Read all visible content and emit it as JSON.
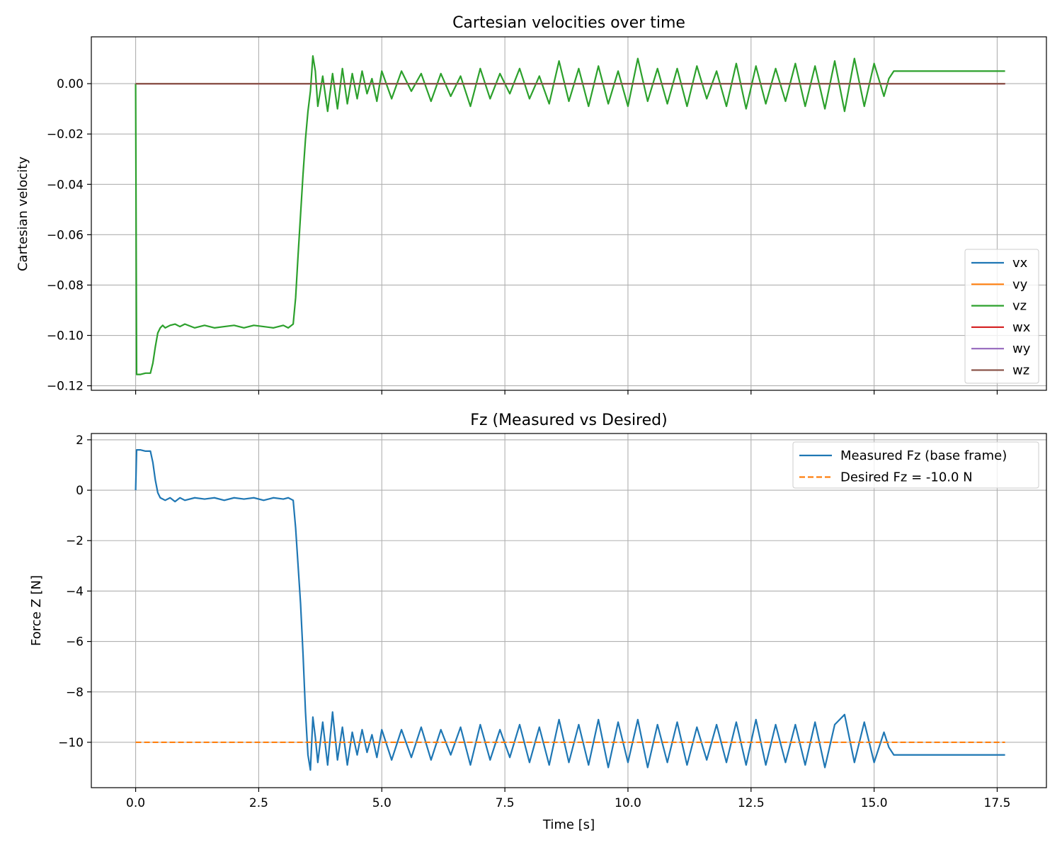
{
  "chart_data": [
    {
      "type": "line",
      "title": "Cartesian velocities over time",
      "xlabel": "",
      "ylabel": "Cartesian velocity",
      "xlim": [
        -0.9,
        18.5
      ],
      "ylim": [
        -0.1218,
        0.0186
      ],
      "xticks": [
        0.0,
        2.5,
        5.0,
        7.5,
        10.0,
        12.5,
        15.0,
        17.5
      ],
      "xtick_labels": [
        "",
        "",
        "",
        "",
        "",
        "",
        "",
        ""
      ],
      "yticks": [
        0.0,
        -0.02,
        -0.04,
        -0.06,
        -0.08,
        -0.1,
        -0.12
      ],
      "ytick_labels": [
        "0.00",
        "−0.02",
        "−0.04",
        "−0.06",
        "−0.08",
        "−0.10",
        "−0.12"
      ],
      "grid": true,
      "legend_position": "lower right",
      "series": [
        {
          "name": "vx",
          "color": "#1f77b4",
          "style": "solid",
          "x": [
            0.0,
            17.66
          ],
          "y": [
            0.0,
            0.0
          ]
        },
        {
          "name": "vy",
          "color": "#ff7f0e",
          "style": "solid",
          "x": [
            0.0,
            17.66
          ],
          "y": [
            0.0,
            0.0
          ]
        },
        {
          "name": "vz",
          "color": "#2ca02c",
          "style": "solid",
          "x": [
            0.0,
            0.02,
            0.1,
            0.2,
            0.3,
            0.35,
            0.4,
            0.45,
            0.5,
            0.55,
            0.6,
            0.7,
            0.8,
            0.9,
            1.0,
            1.2,
            1.4,
            1.6,
            1.8,
            2.0,
            2.2,
            2.4,
            2.6,
            2.8,
            3.0,
            3.1,
            3.2,
            3.25,
            3.3,
            3.35,
            3.4,
            3.45,
            3.5,
            3.55,
            3.6,
            3.65,
            3.7,
            3.8,
            3.9,
            4.0,
            4.1,
            4.2,
            4.3,
            4.4,
            4.5,
            4.6,
            4.7,
            4.8,
            4.9,
            5.0,
            5.2,
            5.4,
            5.6,
            5.8,
            6.0,
            6.2,
            6.4,
            6.6,
            6.8,
            7.0,
            7.2,
            7.4,
            7.6,
            7.8,
            8.0,
            8.2,
            8.4,
            8.6,
            8.8,
            9.0,
            9.2,
            9.4,
            9.6,
            9.8,
            10.0,
            10.2,
            10.4,
            10.6,
            10.8,
            11.0,
            11.2,
            11.4,
            11.6,
            11.8,
            12.0,
            12.2,
            12.4,
            12.6,
            12.8,
            13.0,
            13.2,
            13.4,
            13.6,
            13.8,
            14.0,
            14.2,
            14.4,
            14.6,
            14.8,
            15.0,
            15.2,
            15.3,
            15.4,
            17.66
          ],
          "y": [
            0.0,
            -0.1155,
            -0.1155,
            -0.115,
            -0.115,
            -0.111,
            -0.1045,
            -0.099,
            -0.097,
            -0.096,
            -0.097,
            -0.096,
            -0.0955,
            -0.0965,
            -0.0955,
            -0.097,
            -0.096,
            -0.097,
            -0.0965,
            -0.096,
            -0.097,
            -0.096,
            -0.0965,
            -0.097,
            -0.096,
            -0.097,
            -0.0955,
            -0.085,
            -0.068,
            -0.052,
            -0.036,
            -0.022,
            -0.011,
            -0.003,
            0.011,
            0.005,
            -0.009,
            0.003,
            -0.011,
            0.004,
            -0.01,
            0.006,
            -0.008,
            0.004,
            -0.006,
            0.005,
            -0.004,
            0.002,
            -0.007,
            0.005,
            -0.006,
            0.005,
            -0.003,
            0.004,
            -0.007,
            0.004,
            -0.005,
            0.003,
            -0.009,
            0.006,
            -0.006,
            0.004,
            -0.004,
            0.006,
            -0.006,
            0.003,
            -0.008,
            0.009,
            -0.007,
            0.006,
            -0.009,
            0.007,
            -0.008,
            0.005,
            -0.009,
            0.01,
            -0.007,
            0.006,
            -0.008,
            0.006,
            -0.009,
            0.007,
            -0.006,
            0.005,
            -0.009,
            0.008,
            -0.01,
            0.007,
            -0.008,
            0.006,
            -0.007,
            0.008,
            -0.009,
            0.007,
            -0.01,
            0.009,
            -0.011,
            0.01,
            -0.009,
            0.008,
            -0.005,
            0.002,
            0.005,
            0.005
          ]
        },
        {
          "name": "wx",
          "color": "#d62728",
          "style": "solid",
          "x": [
            0.0,
            17.66
          ],
          "y": [
            0.0,
            0.0
          ]
        },
        {
          "name": "wy",
          "color": "#9467bd",
          "style": "solid",
          "x": [
            0.0,
            17.66
          ],
          "y": [
            0.0,
            0.0
          ]
        },
        {
          "name": "wz",
          "color": "#8c564b",
          "style": "solid",
          "x": [
            0.0,
            17.66
          ],
          "y": [
            0.0,
            0.0
          ]
        }
      ]
    },
    {
      "type": "line",
      "title": "Fz (Measured vs Desired)",
      "xlabel": "Time [s]",
      "ylabel": "Force Z [N]",
      "xlim": [
        -0.9,
        18.5
      ],
      "ylim": [
        -11.8,
        2.25
      ],
      "xticks": [
        0.0,
        2.5,
        5.0,
        7.5,
        10.0,
        12.5,
        15.0,
        17.5
      ],
      "xtick_labels": [
        "0.0",
        "2.5",
        "5.0",
        "7.5",
        "10.0",
        "12.5",
        "15.0",
        "17.5"
      ],
      "yticks": [
        2,
        0,
        -2,
        -4,
        -6,
        -8,
        -10
      ],
      "ytick_labels": [
        "2",
        "0",
        "−2",
        "−4",
        "−6",
        "−8",
        "−10"
      ],
      "grid": true,
      "legend_position": "upper right",
      "series": [
        {
          "name": "Measured Fz (base frame)",
          "color": "#1f77b4",
          "style": "solid",
          "x": [
            0.0,
            0.02,
            0.1,
            0.2,
            0.3,
            0.35,
            0.4,
            0.45,
            0.5,
            0.55,
            0.6,
            0.7,
            0.8,
            0.9,
            1.0,
            1.2,
            1.4,
            1.6,
            1.8,
            2.0,
            2.2,
            2.4,
            2.6,
            2.8,
            3.0,
            3.1,
            3.2,
            3.25,
            3.3,
            3.35,
            3.4,
            3.45,
            3.5,
            3.55,
            3.6,
            3.65,
            3.7,
            3.8,
            3.9,
            4.0,
            4.1,
            4.2,
            4.3,
            4.4,
            4.5,
            4.6,
            4.7,
            4.8,
            4.9,
            5.0,
            5.2,
            5.4,
            5.6,
            5.8,
            6.0,
            6.2,
            6.4,
            6.6,
            6.8,
            7.0,
            7.2,
            7.4,
            7.6,
            7.8,
            8.0,
            8.2,
            8.4,
            8.6,
            8.8,
            9.0,
            9.2,
            9.4,
            9.6,
            9.8,
            10.0,
            10.2,
            10.4,
            10.6,
            10.8,
            11.0,
            11.2,
            11.4,
            11.6,
            11.8,
            12.0,
            12.2,
            12.4,
            12.6,
            12.8,
            13.0,
            13.2,
            13.4,
            13.6,
            13.8,
            14.0,
            14.2,
            14.4,
            14.6,
            14.8,
            15.0,
            15.2,
            15.3,
            15.4,
            17.66
          ],
          "y": [
            0.0,
            1.6,
            1.6,
            1.55,
            1.55,
            1.1,
            0.4,
            -0.1,
            -0.3,
            -0.35,
            -0.4,
            -0.3,
            -0.45,
            -0.3,
            -0.4,
            -0.3,
            -0.35,
            -0.3,
            -0.4,
            -0.3,
            -0.35,
            -0.3,
            -0.4,
            -0.3,
            -0.35,
            -0.3,
            -0.4,
            -1.5,
            -3.0,
            -4.5,
            -6.5,
            -8.8,
            -10.5,
            -11.1,
            -9.0,
            -9.8,
            -10.8,
            -9.2,
            -10.9,
            -8.8,
            -10.7,
            -9.4,
            -10.9,
            -9.6,
            -10.5,
            -9.5,
            -10.4,
            -9.7,
            -10.6,
            -9.5,
            -10.7,
            -9.5,
            -10.6,
            -9.4,
            -10.7,
            -9.5,
            -10.5,
            -9.4,
            -10.9,
            -9.3,
            -10.7,
            -9.5,
            -10.6,
            -9.3,
            -10.8,
            -9.4,
            -10.9,
            -9.1,
            -10.8,
            -9.3,
            -10.9,
            -9.1,
            -11.0,
            -9.2,
            -10.8,
            -9.1,
            -11.0,
            -9.3,
            -10.8,
            -9.2,
            -10.9,
            -9.4,
            -10.7,
            -9.3,
            -10.8,
            -9.2,
            -10.9,
            -9.1,
            -10.9,
            -9.3,
            -10.8,
            -9.3,
            -10.9,
            -9.2,
            -11.0,
            -9.3,
            -8.9,
            -10.8,
            -9.2,
            -10.8,
            -9.6,
            -10.2,
            -10.5,
            -10.5
          ]
        },
        {
          "name": "Desired Fz = -10.0 N",
          "color": "#ff7f0e",
          "style": "dashed",
          "x": [
            0.0,
            17.66
          ],
          "y": [
            -10.0,
            -10.0
          ]
        }
      ]
    }
  ]
}
